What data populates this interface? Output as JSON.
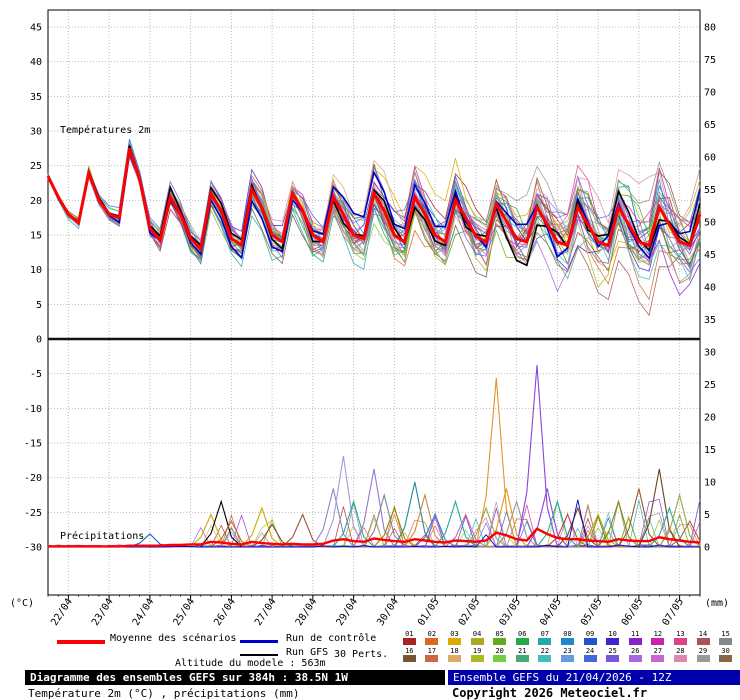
{
  "colors": {
    "mean": "#ff0000",
    "control": "#0000cc",
    "gfs": "#000000",
    "grid": "#bbbbbb",
    "frame": "#000000",
    "divider": "#111111",
    "footer_left_bg": "#000000",
    "footer_right_bg": "#0000aa"
  },
  "member_colors": [
    "#aa2222",
    "#dd6622",
    "#ddaa00",
    "#aaaa22",
    "#66aa22",
    "#22aa44",
    "#22aaaa",
    "#2288cc",
    "#2255cc",
    "#4422cc",
    "#8822cc",
    "#cc22aa",
    "#dd4488",
    "#aa5555",
    "#888888",
    "#775533",
    "#cc6644",
    "#ddaa66",
    "#aabb22",
    "#77cc44",
    "#44aa77",
    "#44bbbb",
    "#6699dd",
    "#4466dd",
    "#7755dd",
    "#aa66dd",
    "#cc66cc",
    "#dd88aa",
    "#999999",
    "#886644"
  ],
  "labels": {
    "temp_panel": "Températures 2m",
    "precip_panel": "Précipitations",
    "unit_left": "(°C)",
    "unit_right": "(mm)"
  },
  "legend": {
    "mean": "Moyenne des scénarios",
    "control": "Run de contrôle",
    "gfs": "Run GFS",
    "perts": "30 Perts.",
    "pert_numbers": [
      "01",
      "02",
      "03",
      "04",
      "05",
      "06",
      "07",
      "08",
      "09",
      "10",
      "11",
      "12",
      "13",
      "14",
      "15",
      "16",
      "17",
      "18",
      "19",
      "20",
      "21",
      "22",
      "23",
      "24",
      "25",
      "26",
      "27",
      "28",
      "29",
      "30"
    ]
  },
  "footer": {
    "altitude": "Altitude du modele : 563m",
    "title_line1": "Diagramme des ensembles GEFS sur 384h : 38.5N 1W",
    "title_line2": "Température 2m (°C) , précipitations (mm)",
    "run_info": "Ensemble GEFS du 21/04/2026 - 12Z",
    "copyright": "Copyright 2026 Meteociel.fr"
  },
  "chart_data": {
    "type": "line",
    "seed": 7,
    "x_axis": {
      "unit": "hours",
      "start": 0,
      "end": 384,
      "step": 6,
      "date_ticks": [
        "22/04",
        "23/04",
        "24/04",
        "25/04",
        "26/04",
        "27/04",
        "28/04",
        "29/04",
        "30/04",
        "01/05",
        "02/05",
        "03/05",
        "04/05",
        "05/05",
        "06/05",
        "07/05"
      ],
      "date_tick_hours": [
        12,
        36,
        60,
        84,
        108,
        132,
        156,
        180,
        204,
        228,
        252,
        276,
        300,
        324,
        348,
        372
      ]
    },
    "left_axis": {
      "label": "(°C)",
      "ticks": [
        45,
        40,
        35,
        30,
        25,
        20,
        15,
        10,
        5,
        0,
        -5,
        -10,
        -15,
        -20,
        -25,
        -30
      ]
    },
    "right_axis": {
      "label": "(mm)",
      "ticks": [
        80,
        75,
        70,
        65,
        60,
        55,
        50,
        45,
        40,
        35,
        30,
        25,
        20,
        15,
        10,
        5,
        0
      ]
    },
    "temperature": {
      "label": "Températures 2m",
      "n_members": 30,
      "mean_6h": [
        23.5,
        20.5,
        18.0,
        16.8,
        24.0,
        20.0,
        18.0,
        17.5,
        27.5,
        23.0,
        16.0,
        14.2,
        20.5,
        18.0,
        14.5,
        13.0,
        21.0,
        18.5,
        14.5,
        13.5,
        21.5,
        19.0,
        15.0,
        14.0,
        21.0,
        18.5,
        15.0,
        14.0,
        20.5,
        18.0,
        15.0,
        14.5,
        21.0,
        18.5,
        15.0,
        14.0,
        20.5,
        18.0,
        15.0,
        14.0,
        20.0,
        17.5,
        14.8,
        14.0,
        19.5,
        17.0,
        14.5,
        14.0,
        19.0,
        16.5,
        14.0,
        13.5,
        19.0,
        16.5,
        14.0,
        13.5,
        19.0,
        16.5,
        14.0,
        13.5,
        19.0,
        16.5,
        14.0,
        13.5,
        18.0
      ],
      "spread_model": {
        "base": 0.3,
        "per_hour": 0.011,
        "max": 4.3
      }
    },
    "precipitation": {
      "label": "Précipitations",
      "mean_6h": [
        0.1,
        0.1,
        0.1,
        0.1,
        0.1,
        0.1,
        0.1,
        0.1,
        0.2,
        0.2,
        0.2,
        0.2,
        0.3,
        0.3,
        0.4,
        0.4,
        0.8,
        0.7,
        0.5,
        0.4,
        0.8,
        0.6,
        0.5,
        0.4,
        0.5,
        0.4,
        0.4,
        0.5,
        1.0,
        1.2,
        0.9,
        0.8,
        1.3,
        1.1,
        0.9,
        0.8,
        1.2,
        1.0,
        0.8,
        0.7,
        1.0,
        0.9,
        0.8,
        1.0,
        2.2,
        1.8,
        1.2,
        1.0,
        2.8,
        2.0,
        1.4,
        1.2,
        1.2,
        1.0,
        0.9,
        0.8,
        1.2,
        1.0,
        0.9,
        0.9,
        1.5,
        1.2,
        1.0,
        0.8,
        0.7
      ],
      "spikes": [
        {
          "t": 60,
          "mm": 2,
          "color": "#2255cc"
        },
        {
          "t": 96,
          "mm": 5,
          "color": "#ccaa00"
        },
        {
          "t": 102,
          "mm": 7,
          "color": "#000000"
        },
        {
          "t": 108,
          "mm": 4,
          "color": "#cc6622"
        },
        {
          "t": 126,
          "mm": 6,
          "color": "#ccaa00"
        },
        {
          "t": 132,
          "mm": 3.5,
          "color": "#884422"
        },
        {
          "t": 150,
          "mm": 5,
          "color": "#995533"
        },
        {
          "t": 168,
          "mm": 9,
          "color": "#8888cc"
        },
        {
          "t": 174,
          "mm": 14,
          "color": "#aa99dd"
        },
        {
          "t": 180,
          "mm": 7,
          "color": "#22aa99"
        },
        {
          "t": 192,
          "mm": 12,
          "color": "#9977cc"
        },
        {
          "t": 198,
          "mm": 8,
          "color": "#778899"
        },
        {
          "t": 204,
          "mm": 6,
          "color": "#888800"
        },
        {
          "t": 216,
          "mm": 10,
          "color": "#228899"
        },
        {
          "t": 222,
          "mm": 8,
          "color": "#cc8844"
        },
        {
          "t": 228,
          "mm": 5,
          "color": "#4466cc"
        },
        {
          "t": 240,
          "mm": 7,
          "color": "#22aa99"
        },
        {
          "t": 246,
          "mm": 5,
          "color": "#cc66aa"
        },
        {
          "t": 258,
          "mm": 6,
          "color": "#99aa44"
        },
        {
          "t": 264,
          "mm": 26,
          "color": "#dd9922"
        },
        {
          "t": 270,
          "mm": 9,
          "color": "#dd9922"
        },
        {
          "t": 276,
          "mm": 7,
          "color": "#999999"
        },
        {
          "t": 288,
          "mm": 28,
          "color": "#8844dd"
        },
        {
          "t": 294,
          "mm": 9,
          "color": "#8844dd"
        },
        {
          "t": 300,
          "mm": 7,
          "color": "#22aa99"
        },
        {
          "t": 306,
          "mm": 5,
          "color": "#cc4444"
        },
        {
          "t": 312,
          "mm": 6,
          "color": "#884422"
        },
        {
          "t": 324,
          "mm": 5,
          "color": "#bbaa00"
        },
        {
          "t": 336,
          "mm": 7,
          "color": "#888800"
        },
        {
          "t": 348,
          "mm": 9,
          "color": "#995533"
        },
        {
          "t": 360,
          "mm": 12,
          "color": "#664422"
        },
        {
          "t": 366,
          "mm": 6,
          "color": "#22aa99"
        },
        {
          "t": 372,
          "mm": 8,
          "color": "#99aa44"
        },
        {
          "t": 378,
          "mm": 4,
          "color": "#aa6644"
        }
      ]
    }
  }
}
